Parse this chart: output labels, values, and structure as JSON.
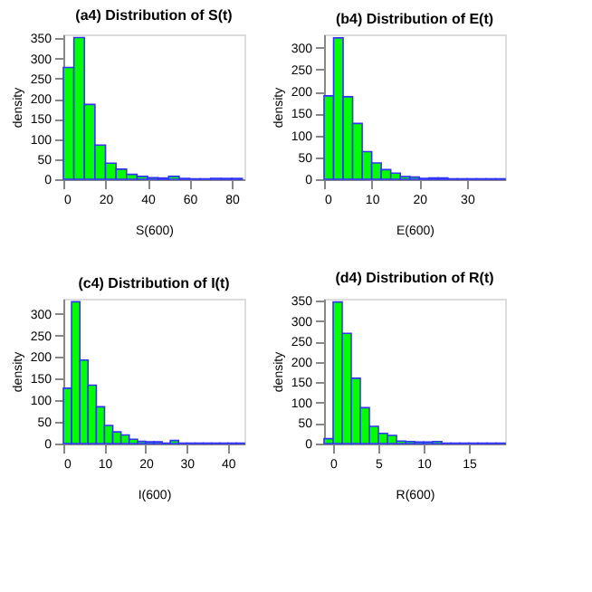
{
  "chart_data": [
    {
      "type": "histogram",
      "title": "(a4) Distribution of S(t)",
      "xlabel": "S(600)",
      "ylabel": "density",
      "color": "#00ff00",
      "bins": [
        0,
        5,
        10,
        15,
        20,
        25,
        30,
        35,
        40,
        45,
        50,
        55,
        60,
        65,
        70,
        75,
        80,
        85
      ],
      "values": [
        278,
        352,
        186,
        85,
        40,
        25,
        12,
        7,
        4,
        3,
        7,
        2,
        1,
        1,
        2,
        2,
        2
      ],
      "xlim": [
        0,
        86
      ],
      "xticks": [
        0,
        20,
        40,
        60,
        80
      ],
      "ylim": [
        0,
        360
      ],
      "yticks": [
        0,
        50,
        100,
        150,
        200,
        250,
        300,
        350
      ],
      "grid": false
    },
    {
      "type": "histogram",
      "title": "(b4) Distribution of E(t)",
      "xlabel": "E(600)",
      "ylabel": "density",
      "color": "#00ff00",
      "bins": [
        0,
        2,
        4,
        6,
        8,
        10,
        12,
        14,
        16,
        18,
        20,
        22,
        24,
        26,
        28,
        30,
        32,
        34,
        36,
        38
      ],
      "values": [
        190,
        322,
        188,
        127,
        63,
        37,
        22,
        14,
        6,
        5,
        2,
        3,
        3,
        1,
        1,
        1,
        1,
        1,
        1
      ],
      "xlim": [
        0,
        38
      ],
      "xticks": [
        0,
        10,
        20,
        30
      ],
      "ylim": [
        0,
        330
      ],
      "yticks": [
        0,
        50,
        100,
        150,
        200,
        250,
        300
      ],
      "grid": false
    },
    {
      "type": "histogram",
      "title": "(c4) Distribution of I(t)",
      "xlabel": "I(600)",
      "ylabel": "density",
      "color": "#00ff00",
      "bins": [
        0,
        2,
        4,
        6,
        8,
        10,
        12,
        14,
        16,
        18,
        20,
        22,
        24,
        26,
        28,
        30,
        32,
        34,
        36,
        38,
        40,
        42,
        44
      ],
      "values": [
        128,
        328,
        193,
        135,
        85,
        42,
        27,
        20,
        10,
        5,
        4,
        4,
        1,
        7,
        1,
        1,
        1,
        1,
        1,
        1,
        1,
        1
      ],
      "xlim": [
        0,
        44
      ],
      "xticks": [
        0,
        10,
        20,
        30,
        40
      ],
      "ylim": [
        0,
        335
      ],
      "yticks": [
        0,
        50,
        100,
        150,
        200,
        250,
        300
      ],
      "grid": false
    },
    {
      "type": "histogram",
      "title": "(d4) Distribution of R(t)",
      "xlabel": "R(600)",
      "ylabel": "density",
      "color": "#00ff00",
      "bins": [
        -1,
        0,
        1,
        2,
        3,
        4,
        5,
        6,
        7,
        8,
        9,
        10,
        11,
        12,
        13,
        14,
        15,
        16,
        17,
        18,
        19
      ],
      "values": [
        12,
        347,
        270,
        160,
        88,
        42,
        25,
        20,
        6,
        5,
        4,
        4,
        5,
        1,
        1,
        1,
        1,
        1,
        1,
        1
      ],
      "xlim": [
        -1,
        19
      ],
      "xticks": [
        0,
        5,
        10,
        15
      ],
      "ylim": [
        0,
        355
      ],
      "yticks": [
        0,
        50,
        100,
        150,
        200,
        250,
        300,
        350
      ],
      "grid": false
    }
  ]
}
